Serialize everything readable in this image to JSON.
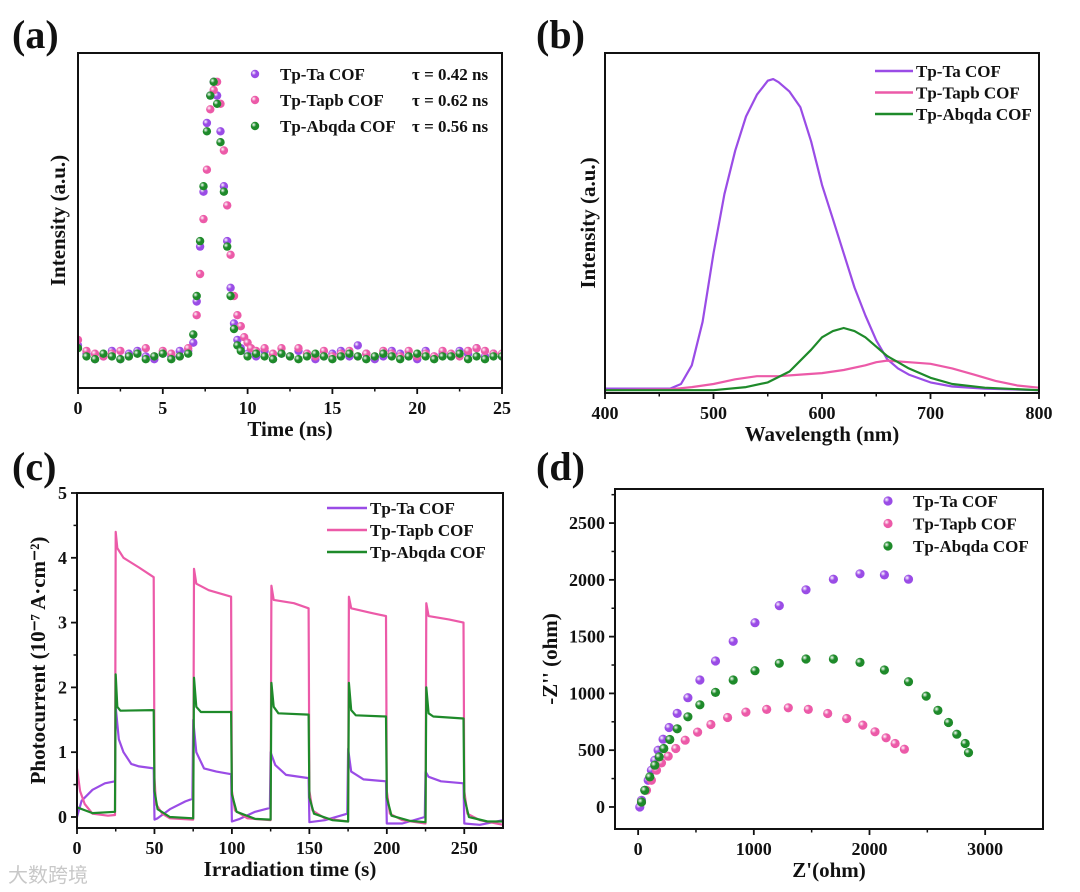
{
  "colors": {
    "Tp-Ta COF": "#9a4ce6",
    "Tp-Tapb COF": "#ec5aa8",
    "Tp-Abqda COF": "#1e8a2a"
  },
  "watermark": "大数跨境",
  "chart_data": [
    {
      "panel": "(a)",
      "type": "scatter",
      "xlabel": "Time (ns)",
      "ylabel": "Intensity (a.u.)",
      "xlim": [
        0,
        25
      ],
      "ylim": [
        -0.115,
        1.105
      ],
      "xticks": [
        0,
        5,
        10,
        15,
        20,
        25
      ],
      "yticks": [],
      "legend": "top-right",
      "series": [
        {
          "name": "Tp-Ta COF",
          "tau": "τ = 0.42 ns",
          "x": [
            0,
            0.5,
            1,
            1.5,
            2,
            2.5,
            3,
            3.5,
            4,
            4.5,
            5,
            5.5,
            6,
            6.5,
            6.8,
            7.0,
            7.2,
            7.4,
            7.6,
            7.8,
            8.0,
            8.2,
            8.4,
            8.6,
            8.8,
            9.0,
            9.2,
            9.4,
            9.6,
            10,
            10.5,
            11,
            11.5,
            12,
            12.5,
            13,
            13.5,
            14,
            14.5,
            15,
            15.5,
            16,
            16.5,
            17,
            17.5,
            18,
            18.5,
            19,
            19.5,
            20,
            20.5,
            21,
            21.5,
            22,
            22.5,
            23,
            23.5,
            24,
            24.5,
            25
          ],
          "y": [
            0.04,
            0.01,
            -0.01,
            0.0,
            0.02,
            -0.01,
            0.01,
            0.02,
            0.0,
            -0.01,
            0.01,
            0.0,
            0.02,
            0.02,
            0.05,
            0.2,
            0.4,
            0.6,
            0.85,
            0.95,
            1.0,
            0.95,
            0.82,
            0.62,
            0.42,
            0.25,
            0.12,
            0.06,
            0.03,
            0.01,
            0.0,
            0.02,
            -0.01,
            0.01,
            0.0,
            0.02,
            0.01,
            -0.01,
            0.0,
            0.01,
            0.02,
            0.0,
            0.04,
            0.01,
            -0.01,
            0.0,
            0.02,
            0.01,
            0.0,
            -0.01,
            0.02,
            0.0,
            0.01,
            0.0,
            0.02,
            0.01,
            0.03,
            0.0,
            0.01,
            0.0
          ]
        },
        {
          "name": "Tp-Tapb COF",
          "tau": "τ = 0.62 ns",
          "x": [
            0,
            0.5,
            1,
            1.5,
            2,
            2.5,
            3,
            3.5,
            4,
            4.5,
            5,
            5.5,
            6,
            6.5,
            7.0,
            7.2,
            7.4,
            7.6,
            7.8,
            8.0,
            8.2,
            8.4,
            8.6,
            8.8,
            9.0,
            9.2,
            9.4,
            9.6,
            9.8,
            10,
            10.2,
            10.5,
            11,
            11.5,
            12,
            12.5,
            13,
            13.5,
            14,
            14.5,
            15,
            15.5,
            16,
            16.5,
            17,
            17.5,
            18,
            18.5,
            19,
            19.5,
            20,
            20.5,
            21,
            21.5,
            22,
            22.5,
            23,
            23.5,
            24,
            24.5,
            25
          ],
          "y": [
            0.06,
            0.02,
            0.01,
            0.0,
            0.01,
            0.02,
            0.0,
            0.01,
            0.03,
            0.0,
            0.02,
            0.01,
            0.0,
            0.03,
            0.15,
            0.3,
            0.5,
            0.68,
            0.9,
            0.97,
            1.0,
            0.92,
            0.75,
            0.55,
            0.37,
            0.22,
            0.15,
            0.11,
            0.07,
            0.05,
            0.03,
            0.02,
            0.03,
            0.01,
            0.03,
            0.0,
            0.03,
            0.01,
            0.0,
            0.02,
            0.0,
            0.01,
            0.02,
            0.0,
            0.01,
            0.0,
            0.02,
            0.01,
            0.0,
            0.02,
            0.0,
            0.01,
            0.0,
            0.02,
            0.01,
            0.0,
            0.02,
            0.03,
            0.02,
            0.01,
            0.01
          ]
        },
        {
          "name": "Tp-Abqda COF",
          "tau": "τ = 0.56 ns",
          "x": [
            0,
            0.5,
            1,
            1.5,
            2,
            2.5,
            3,
            3.5,
            4,
            4.5,
            5,
            5.5,
            6,
            6.5,
            6.8,
            7.0,
            7.2,
            7.4,
            7.6,
            7.8,
            8.0,
            8.2,
            8.4,
            8.6,
            8.8,
            9.0,
            9.2,
            9.4,
            9.6,
            10,
            10.5,
            11,
            11.5,
            12,
            12.5,
            13,
            13.5,
            14,
            14.5,
            15,
            15.5,
            16,
            16.5,
            17,
            17.5,
            18,
            18.5,
            19,
            19.5,
            20,
            20.5,
            21,
            21.5,
            22,
            22.5,
            23,
            23.5,
            24,
            24.5,
            25
          ],
          "y": [
            0.03,
            0.0,
            -0.01,
            0.01,
            0.0,
            -0.01,
            0.0,
            0.01,
            -0.01,
            0.0,
            0.01,
            -0.01,
            0.0,
            0.01,
            0.08,
            0.22,
            0.42,
            0.62,
            0.82,
            0.95,
            1.0,
            0.92,
            0.78,
            0.6,
            0.4,
            0.22,
            0.1,
            0.04,
            0.02,
            0.0,
            0.01,
            0.0,
            -0.01,
            0.01,
            0.0,
            -0.01,
            0.0,
            0.01,
            0.0,
            -0.01,
            0.0,
            0.01,
            0.0,
            -0.01,
            0.0,
            0.01,
            0.0,
            -0.01,
            0.0,
            0.01,
            0.0,
            -0.01,
            0.0,
            0.0,
            0.01,
            -0.01,
            0.0,
            -0.01,
            0.0,
            0.0
          ]
        }
      ]
    },
    {
      "panel": "(b)",
      "type": "line",
      "xlabel": "Wavelength (nm)",
      "ylabel": "Intensity (a.u.)",
      "xlim": [
        400,
        800
      ],
      "ylim": [
        -0.009,
        1.084
      ],
      "xticks": [
        400,
        500,
        600,
        700,
        800
      ],
      "yticks": [],
      "legend": "top-right",
      "series": [
        {
          "name": "Tp-Ta COF",
          "x": [
            400,
            460,
            470,
            480,
            490,
            500,
            510,
            520,
            530,
            540,
            550,
            555,
            560,
            570,
            580,
            590,
            600,
            610,
            620,
            630,
            640,
            650,
            660,
            670,
            680,
            700,
            720,
            750,
            800
          ],
          "y": [
            0.005,
            0.005,
            0.02,
            0.08,
            0.22,
            0.44,
            0.63,
            0.77,
            0.88,
            0.95,
            0.995,
            1.0,
            0.99,
            0.96,
            0.91,
            0.8,
            0.66,
            0.55,
            0.44,
            0.33,
            0.24,
            0.16,
            0.1,
            0.07,
            0.05,
            0.025,
            0.012,
            0.005,
            0.0
          ]
        },
        {
          "name": "Tp-Tapb COF",
          "x": [
            400,
            460,
            480,
            500,
            520,
            540,
            560,
            580,
            600,
            620,
            640,
            650,
            660,
            680,
            700,
            720,
            740,
            760,
            780,
            800
          ],
          "y": [
            0.0,
            0.003,
            0.01,
            0.02,
            0.035,
            0.045,
            0.045,
            0.05,
            0.055,
            0.065,
            0.08,
            0.09,
            0.095,
            0.09,
            0.085,
            0.07,
            0.05,
            0.03,
            0.015,
            0.008
          ]
        },
        {
          "name": "Tp-Abqda COF",
          "x": [
            400,
            500,
            530,
            550,
            570,
            590,
            600,
            610,
            620,
            630,
            640,
            650,
            660,
            670,
            680,
            700,
            720,
            750,
            800
          ],
          "y": [
            0.0,
            0.0,
            0.01,
            0.025,
            0.06,
            0.13,
            0.17,
            0.19,
            0.2,
            0.19,
            0.17,
            0.14,
            0.11,
            0.09,
            0.07,
            0.04,
            0.02,
            0.008,
            0.0
          ]
        }
      ]
    },
    {
      "panel": "(c)",
      "type": "line",
      "xlabel": "Irradiation time (s)",
      "ylabel": "Photocurrent (10⁻⁷ A·cm⁻²)",
      "xlim": [
        0,
        275
      ],
      "ylim": [
        -0.17,
        5
      ],
      "xticks": [
        0,
        50,
        100,
        150,
        200,
        250
      ],
      "yticks": [
        0,
        1,
        2,
        3,
        4,
        5
      ],
      "legend": "top-right",
      "series": [
        {
          "name": "Tp-Ta COF",
          "x": [
            0,
            3,
            10,
            18,
            24.5,
            25,
            27,
            30,
            35,
            40,
            49.5,
            50,
            52,
            60,
            70,
            74.5,
            75,
            77,
            82,
            90,
            99.5,
            100,
            105,
            115,
            124.5,
            125,
            128,
            135,
            149.5,
            150,
            160,
            174.5,
            175,
            177,
            185,
            199.5,
            200,
            210,
            224.5,
            225,
            227,
            235,
            249.5,
            250,
            260,
            275
          ],
          "y": [
            0.0,
            0.25,
            0.42,
            0.52,
            0.55,
            1.7,
            1.2,
            1.0,
            0.82,
            0.78,
            0.75,
            -0.04,
            -0.02,
            0.12,
            0.24,
            0.28,
            1.5,
            1.0,
            0.75,
            0.7,
            0.66,
            -0.07,
            -0.03,
            0.08,
            0.14,
            1.0,
            0.8,
            0.65,
            0.6,
            -0.08,
            -0.05,
            0.05,
            1.05,
            0.7,
            0.58,
            0.55,
            -0.1,
            -0.1,
            0.0,
            0.7,
            0.62,
            0.55,
            0.52,
            -0.1,
            -0.12,
            -0.05
          ]
        },
        {
          "name": "Tp-Tapb COF",
          "x": [
            0,
            2,
            5,
            10,
            20,
            24.5,
            25,
            26,
            30,
            40,
            49.5,
            50,
            51,
            55,
            60,
            75,
            75.5,
            77,
            85,
            99.5,
            100,
            102,
            110,
            125,
            125.5,
            127,
            140,
            149.5,
            150,
            152,
            160,
            175,
            175.5,
            177,
            190,
            199.5,
            200,
            202,
            210,
            225,
            225.5,
            227,
            240,
            249.5,
            250,
            252,
            260,
            275
          ],
          "y": [
            0.75,
            0.4,
            0.2,
            0.05,
            0.02,
            0.03,
            4.4,
            4.15,
            4.0,
            3.85,
            3.7,
            0.6,
            0.2,
            0.05,
            -0.02,
            -0.04,
            3.83,
            3.6,
            3.5,
            3.4,
            0.4,
            0.1,
            -0.02,
            -0.05,
            3.57,
            3.35,
            3.3,
            3.22,
            0.4,
            0.1,
            -0.02,
            -0.07,
            3.4,
            3.22,
            3.15,
            3.1,
            0.4,
            0.05,
            -0.05,
            -0.1,
            3.3,
            3.1,
            3.05,
            3.0,
            0.4,
            0.05,
            -0.05,
            -0.12
          ]
        },
        {
          "name": "Tp-Abqda COF",
          "x": [
            0,
            10,
            24.5,
            25,
            26,
            28,
            49.5,
            50,
            52,
            60,
            75,
            75.5,
            77,
            80,
            99.5,
            100,
            103,
            115,
            125,
            125.5,
            127,
            130,
            149.5,
            150,
            153,
            165,
            175,
            175.5,
            177,
            180,
            199.5,
            200,
            203,
            215,
            225,
            225.5,
            227,
            230,
            249.5,
            250,
            253,
            265,
            275
          ],
          "y": [
            0.15,
            0.06,
            0.08,
            2.2,
            1.7,
            1.64,
            1.65,
            0.4,
            0.12,
            0.0,
            -0.02,
            2.15,
            1.7,
            1.62,
            1.62,
            0.35,
            0.08,
            -0.03,
            -0.04,
            2.07,
            1.7,
            1.6,
            1.58,
            0.3,
            0.05,
            -0.05,
            -0.07,
            2.07,
            1.65,
            1.57,
            1.55,
            0.3,
            0.02,
            -0.06,
            -0.08,
            2.0,
            1.6,
            1.55,
            1.52,
            0.3,
            0.0,
            -0.07,
            -0.07
          ]
        }
      ]
    },
    {
      "panel": "(d)",
      "type": "scatter",
      "xlabel": "Z'(ohm)",
      "ylabel": "-Z'' (ohm)",
      "xlim": [
        -200,
        3500
      ],
      "ylim": [
        -194,
        2800
      ],
      "xticks": [
        0,
        1000,
        2000,
        3000
      ],
      "yticks": [
        0,
        500,
        1000,
        1500,
        2000,
        2500
      ],
      "legend": "top-right",
      "series": [
        {
          "name": "Tp-Ta COF",
          "x": [
            14,
            29,
            58,
            87,
            115,
            144,
            173,
            216,
            268,
            338,
            430,
            534,
            669,
            822,
            1010,
            1220,
            1451,
            1688,
            1918,
            2129,
            2337
          ],
          "y": [
            0,
            59,
            147,
            235,
            324,
            412,
            500,
            597,
            700,
            824,
            962,
            1118,
            1285,
            1459,
            1623,
            1773,
            1912,
            2006,
            2053,
            2044,
            2006
          ]
        },
        {
          "name": "Tp-Tapb COF",
          "x": [
            29,
            72,
            115,
            159,
            202,
            260,
            326,
            407,
            514,
            629,
            773,
            932,
            1111,
            1298,
            1471,
            1639,
            1803,
            1942,
            2048,
            2144,
            2221,
            2302
          ],
          "y": [
            44,
            147,
            235,
            324,
            388,
            447,
            515,
            588,
            659,
            726,
            788,
            835,
            859,
            873,
            859,
            823,
            779,
            721,
            662,
            609,
            559,
            509
          ]
        },
        {
          "name": "Tp-Abqda COF",
          "x": [
            29,
            58,
            101,
            144,
            182,
            222,
            274,
            338,
            430,
            534,
            669,
            822,
            1010,
            1220,
            1451,
            1688,
            1918,
            2129,
            2337,
            2490,
            2591,
            2683,
            2755,
            2827,
            2856
          ],
          "y": [
            44,
            147,
            265,
            368,
            441,
            515,
            594,
            688,
            794,
            900,
            1009,
            1118,
            1200,
            1265,
            1303,
            1303,
            1273,
            1206,
            1103,
            976,
            850,
            744,
            641,
            559,
            479
          ]
        }
      ]
    }
  ]
}
